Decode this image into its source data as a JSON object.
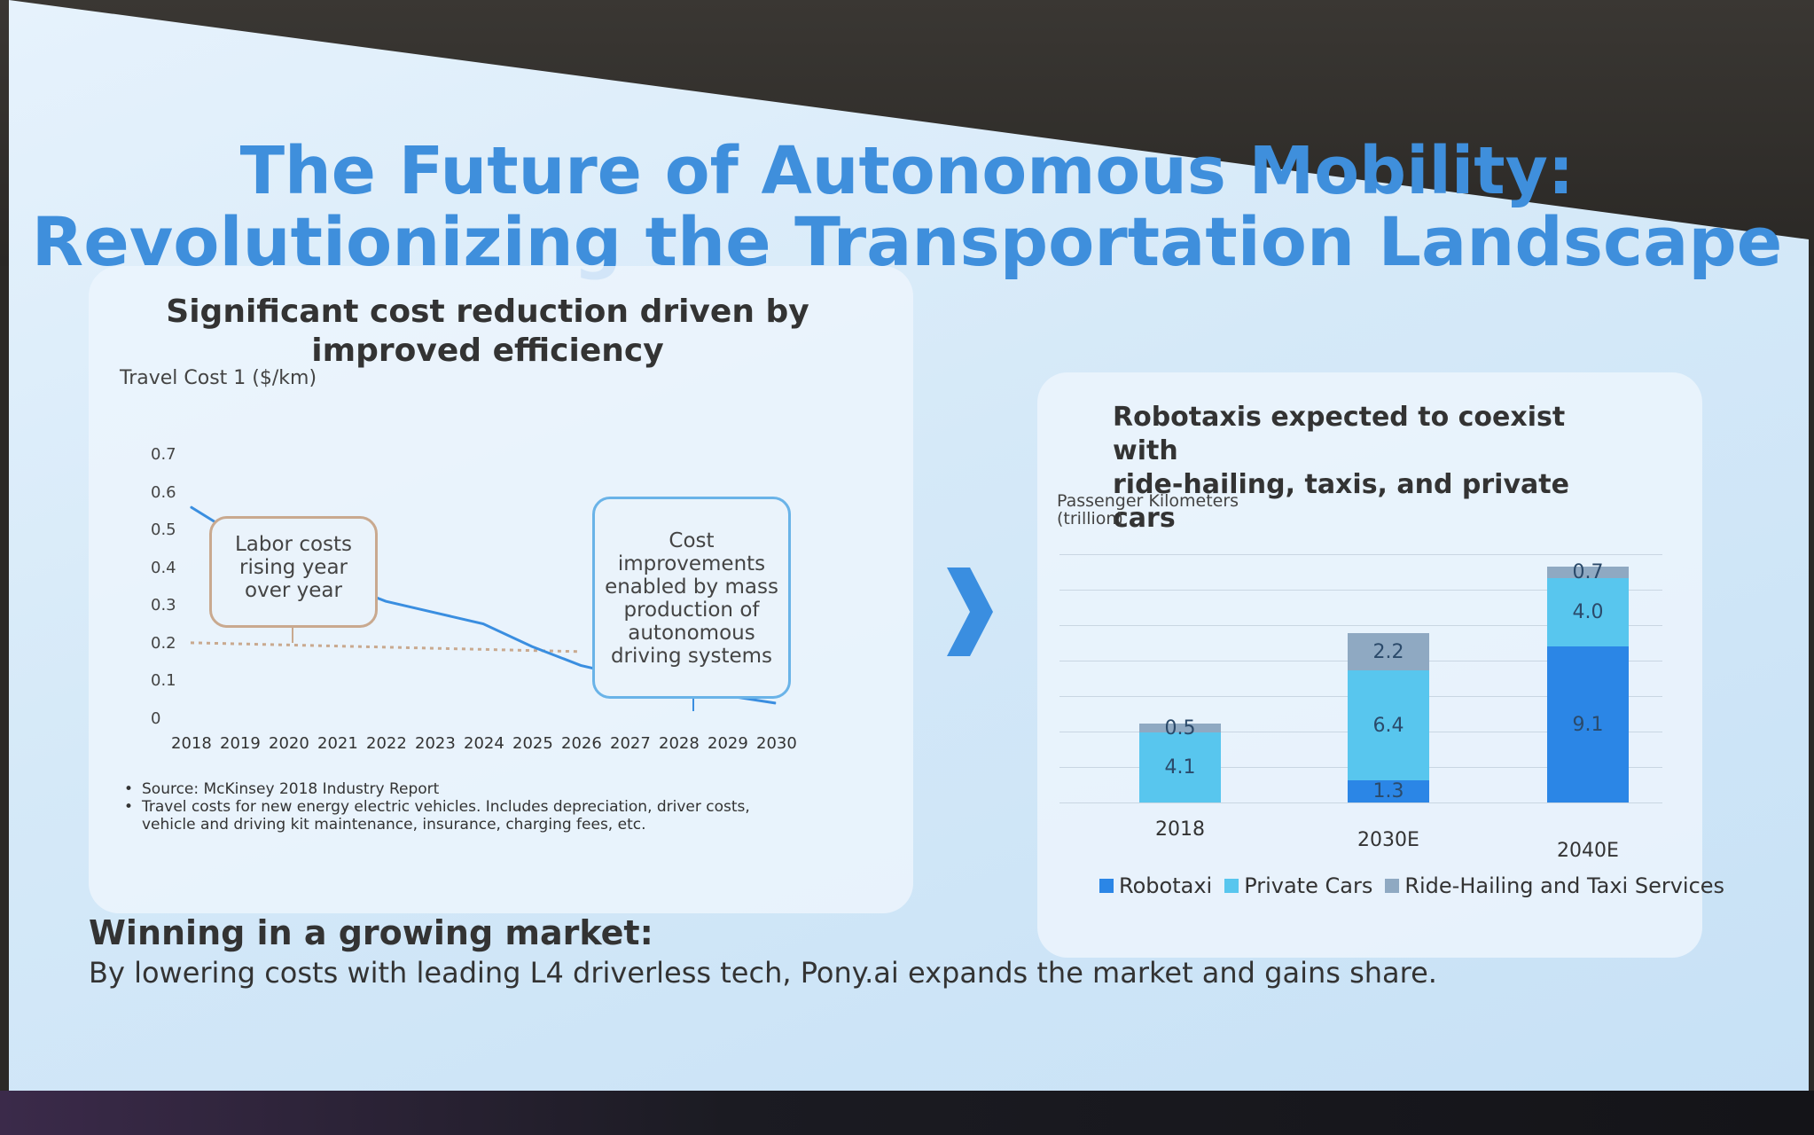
{
  "slide": {
    "title_line1": "The Future of Autonomous Mobility:",
    "title_line2": "Revolutionizing the Transportation Landscape",
    "colors": {
      "title": "#3f8fdc",
      "chevron": "#3a8ee0"
    },
    "arrow_icon": "chevron-right-icon"
  },
  "left_panel": {
    "title_line1": "Significant cost reduction driven by",
    "title_line2": "improved efficiency",
    "callout_labor": [
      "Labor costs",
      "rising year",
      "over year"
    ],
    "callout_cost": [
      "Cost",
      "improvements",
      "enabled by mass",
      "production of",
      "autonomous",
      "driving systems"
    ],
    "sources": [
      "Source: McKinsey 2018 Industry Report",
      "Travel costs for new energy electric vehicles. Includes depreciation, driver costs, vehicle and driving kit maintenance, insurance, charging fees, etc."
    ]
  },
  "right_panel": {
    "title_line1": "Robotaxis expected to coexist with",
    "title_line2": "ride-hailing, taxis, and private cars",
    "legend": [
      "Robotaxi",
      "Private Cars",
      "Ride-Hailing and Taxi Services"
    ]
  },
  "bottom": {
    "heading": "Winning in a growing market:",
    "body": "By lowering costs with leading L4 driverless tech, Pony.ai expands the market and gains share."
  },
  "chart_data": [
    {
      "type": "line",
      "ylabel": "Travel Cost 1 ($/km)",
      "x": [
        "2018",
        "2019",
        "2020",
        "2021",
        "2022",
        "2023",
        "2024",
        "2025",
        "2026",
        "2027",
        "2028",
        "2029",
        "2030"
      ],
      "yticks": [
        "0.7",
        "0.6",
        "0.5",
        "0.4",
        "0.3",
        "0.2",
        "0.1",
        "0"
      ],
      "ylim": [
        0,
        0.7
      ],
      "series": [
        {
          "values": [
            0.56,
            0.48,
            0.42,
            0.36,
            0.31,
            0.28,
            0.25,
            0.19,
            0.14,
            0.11,
            0.08,
            0.06,
            0.04
          ]
        }
      ],
      "reference_line": 0.2,
      "colors": {
        "line": "#3a8ee0",
        "reference": "#c9a98f"
      }
    },
    {
      "type": "bar",
      "ylabel": "Passenger Kilometers (trillion)",
      "categories": [
        "2018",
        "2030E",
        "2040E"
      ],
      "series": [
        {
          "name": "Robotaxi",
          "values": [
            0,
            1.3,
            9.1
          ],
          "labels": [
            "",
            "1.3",
            "9.1"
          ]
        },
        {
          "name": "Private Cars",
          "values": [
            4.1,
            6.4,
            4.0
          ],
          "labels": [
            "4.1",
            "6.4",
            "4.0"
          ]
        },
        {
          "name": "Ride-Hailing and Taxi Services",
          "values": [
            0.5,
            2.2,
            0.7
          ],
          "labels": [
            "0.5",
            "2.2",
            "0.7"
          ]
        }
      ],
      "colors": {
        "Robotaxi": "#2b86e6",
        "Private Cars": "#58c6ee",
        "Ride-Hailing and Taxi Services": "#8fa9c2"
      }
    }
  ]
}
